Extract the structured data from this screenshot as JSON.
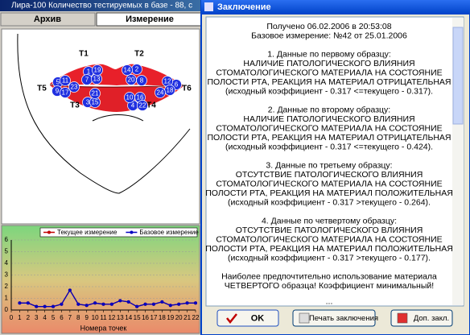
{
  "window": {
    "title": "Лира-100   Количество тестируемых в базе - 88, с",
    "tabs": [
      "Архив",
      "Измерение"
    ]
  },
  "diagram": {
    "labels": [
      "T1",
      "T2",
      "T5",
      "T6",
      "T3",
      "T4"
    ],
    "points": [
      1,
      2,
      3,
      4,
      5,
      6,
      7,
      8,
      9,
      10,
      11,
      12,
      13,
      14,
      15,
      16,
      17,
      18,
      19,
      20,
      21,
      22,
      23,
      24
    ]
  },
  "chart": {
    "type": "line",
    "xlabel": "Номера точек",
    "x": [
      1,
      2,
      3,
      4,
      5,
      6,
      7,
      8,
      9,
      10,
      11,
      12,
      13,
      14,
      15,
      16,
      17,
      18,
      19,
      20,
      21,
      22
    ],
    "xlim": [
      0,
      22
    ],
    "xticks": [
      0,
      1,
      2,
      3,
      4,
      5,
      6,
      7,
      8,
      9,
      10,
      11,
      12,
      13,
      14,
      15,
      16,
      17,
      18,
      19,
      20,
      21,
      22
    ],
    "ylim": [
      0,
      6
    ],
    "yticks": [
      0,
      1,
      2,
      3,
      4,
      5,
      6
    ],
    "grid": true,
    "series": [
      {
        "name": "Текущее измерение",
        "color": "#c00000",
        "values": [
          0.6,
          0.6,
          0.3,
          0.3,
          0.3,
          0.5,
          1.7,
          0.5,
          0.4,
          0.6,
          0.5,
          0.5,
          0.8,
          0.7,
          0.3,
          0.5,
          0.5,
          0.7,
          0.4,
          0.5,
          0.6,
          0.6
        ]
      },
      {
        "name": "Базовое измерение",
        "color": "#0000c0",
        "values": [
          0.6,
          0.6,
          0.3,
          0.3,
          0.3,
          0.5,
          1.7,
          0.5,
          0.4,
          0.6,
          0.5,
          0.5,
          0.8,
          0.7,
          0.3,
          0.5,
          0.5,
          0.7,
          0.4,
          0.5,
          0.6,
          0.6
        ]
      }
    ]
  },
  "dialog": {
    "title": "Заключение",
    "header": [
      "Получено 06.02.2006 в 20:53:08",
      "Базовое измерение: №42 от 25.01.2006"
    ],
    "paragraphs": [
      [
        "1. Данные по первому образцу:",
        "НАЛИЧИЕ ПАТОЛОГИЧЕСКОГО ВЛИЯНИЯ",
        "СТОМАТОЛОГИЧЕСКОГО МАТЕРИАЛА НА СОСТОЯНИЕ",
        "ПОЛОСТИ РТА, РЕАКЦИЯ НА МАТЕРИАЛ ОТРИЦАТЕЛЬНАЯ",
        "(исходный коэффициент - 0.317 <=текущего - 0.317)."
      ],
      [
        "2. Данные по второму образцу:",
        "НАЛИЧИЕ ПАТОЛОГИЧЕСКОГО ВЛИЯНИЯ",
        "СТОМАТОЛОГИЧЕСКОГО МАТЕРИАЛА НА СОСТОЯНИЕ",
        "ПОЛОСТИ РТА, РЕАКЦИЯ НА МАТЕРИАЛ ОТРИЦАТЕЛЬНАЯ",
        "(исходный коэффициент - 0.317 <=текущего - 0.424)."
      ],
      [
        "3. Данные по третьему образцу:",
        "ОТСУТСТВИЕ ПАТОЛОГИЧЕСКОГО ВЛИЯНИЯ",
        "СТОМАТОЛОГИЧЕСКОГО МАТЕРИАЛА НА СОСТОЯНИЕ",
        "ПОЛОСТИ РТА, РЕАКЦИЯ НА МАТЕРИАЛ ПОЛОЖИТЕЛЬНАЯ",
        "(исходный коэффициент - 0.317 >текущего - 0.264)."
      ],
      [
        "4. Данные по четвертому образцу:",
        "ОТСУТСТВИЕ ПАТОЛОГИЧЕСКОГО ВЛИЯНИЯ",
        "СТОМАТОЛОГИЧЕСКОГО МАТЕРИАЛА НА СОСТОЯНИЕ",
        "ПОЛОСТИ РТА, РЕАКЦИЯ НА МАТЕРИАЛ ПОЛОЖИТЕЛЬНАЯ",
        "(исходный коэффициент - 0.317 >текущего - 0.177)."
      ]
    ],
    "conclusion": [
      "Наиболее предпочтительно использование материала",
      "ЧЕТВЕРТОГО образца! Коэффициент минимальный!"
    ],
    "more": "...",
    "buttons": [
      "OK",
      "Печать заключения",
      "Доп. закл."
    ]
  }
}
